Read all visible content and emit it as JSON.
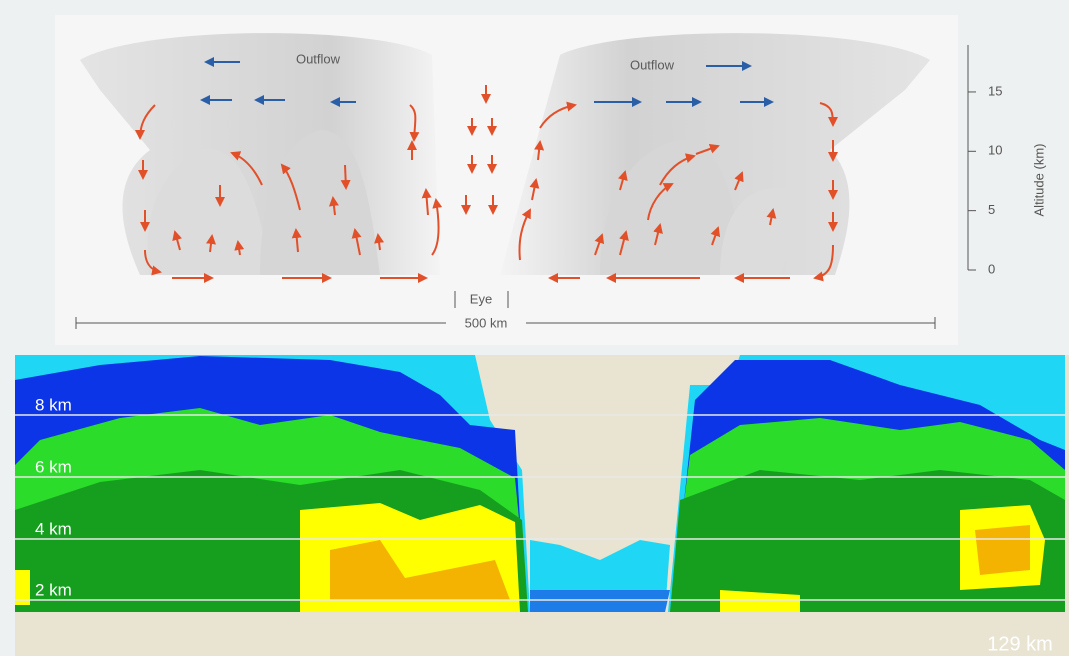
{
  "diagram": {
    "outflow_labels": [
      "Outflow",
      "Outflow"
    ],
    "eye_label": "Eye",
    "distance_label": "500 km",
    "altitude_axis": {
      "label": "Altitude (km)",
      "ticks": [
        0,
        5,
        10,
        15
      ]
    }
  },
  "radar": {
    "height_labels": [
      "8 km",
      "6 km",
      "4 km",
      "2 km"
    ],
    "range_label": "129 km"
  }
}
